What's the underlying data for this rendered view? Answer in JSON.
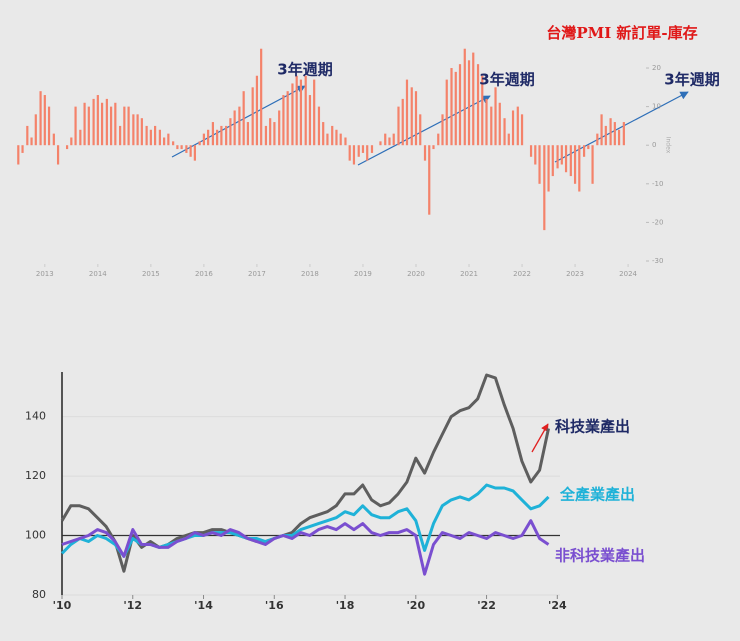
{
  "chart_data": [
    {
      "type": "bar",
      "title": "台灣PMI 新訂單-庫存",
      "y_label": "Index",
      "annotations": [
        "3年週期",
        "3年週期",
        "3年週期"
      ],
      "color": "#f4826a",
      "x": [
        2012.5,
        2012.58,
        2012.67,
        2012.75,
        2012.83,
        2012.92,
        2013.0,
        2013.08,
        2013.17,
        2013.25,
        2013.33,
        2013.42,
        2013.5,
        2013.58,
        2013.67,
        2013.75,
        2013.83,
        2013.92,
        2014.0,
        2014.08,
        2014.17,
        2014.25,
        2014.33,
        2014.42,
        2014.5,
        2014.58,
        2014.67,
        2014.75,
        2014.83,
        2014.92,
        2015.0,
        2015.08,
        2015.17,
        2015.25,
        2015.33,
        2015.42,
        2015.5,
        2015.58,
        2015.67,
        2015.75,
        2015.83,
        2015.92,
        2016.0,
        2016.08,
        2016.17,
        2016.25,
        2016.33,
        2016.42,
        2016.5,
        2016.58,
        2016.67,
        2016.75,
        2016.83,
        2016.92,
        2017.0,
        2017.08,
        2017.17,
        2017.25,
        2017.33,
        2017.42,
        2017.5,
        2017.58,
        2017.67,
        2017.75,
        2017.83,
        2017.92,
        2018.0,
        2018.08,
        2018.17,
        2018.25,
        2018.33,
        2018.42,
        2018.5,
        2018.58,
        2018.67,
        2018.75,
        2018.83,
        2018.92,
        2019.0,
        2019.08,
        2019.17,
        2019.25,
        2019.33,
        2019.42,
        2019.5,
        2019.58,
        2019.67,
        2019.75,
        2019.83,
        2019.92,
        2020.0,
        2020.08,
        2020.17,
        2020.25,
        2020.33,
        2020.42,
        2020.5,
        2020.58,
        2020.67,
        2020.75,
        2020.83,
        2020.92,
        2021.0,
        2021.08,
        2021.17,
        2021.25,
        2021.33,
        2021.42,
        2021.5,
        2021.58,
        2021.67,
        2021.75,
        2021.83,
        2021.92,
        2022.0,
        2022.08,
        2022.17,
        2022.25,
        2022.33,
        2022.42,
        2022.5,
        2022.58,
        2022.67,
        2022.75,
        2022.83,
        2022.92,
        2023.0,
        2023.08,
        2023.17,
        2023.25,
        2023.33,
        2023.42,
        2023.5,
        2023.58,
        2023.67,
        2023.75,
        2023.83,
        2023.92
      ],
      "values": [
        -5,
        -2,
        5,
        2,
        8,
        14,
        13,
        10,
        3,
        -5,
        0,
        -1,
        2,
        10,
        4,
        11,
        10,
        12,
        13,
        11,
        12,
        10,
        11,
        5,
        10,
        10,
        8,
        8,
        7,
        5,
        4,
        5,
        4,
        2,
        3,
        1,
        -1,
        -1,
        -2,
        -3,
        -4,
        1,
        3,
        4,
        6,
        4,
        5,
        5,
        7,
        9,
        10,
        14,
        6,
        15,
        18,
        25,
        5,
        7,
        6,
        9,
        13,
        14,
        16,
        18,
        17,
        18,
        13,
        17,
        10,
        6,
        3,
        5,
        4,
        3,
        2,
        -4,
        -5,
        -3,
        -2,
        -4,
        -2,
        0,
        1,
        3,
        2,
        3,
        10,
        12,
        17,
        15,
        14,
        8,
        -4,
        -18,
        -1,
        3,
        8,
        17,
        20,
        19,
        21,
        25,
        22,
        24,
        21,
        18,
        12,
        10,
        15,
        11,
        7,
        3,
        9,
        10,
        8,
        0,
        -3,
        -5,
        -10,
        -22,
        -12,
        -8,
        -6,
        -5,
        -7,
        -8,
        -10,
        -12,
        -3,
        -1,
        -10,
        3,
        8,
        5,
        7,
        6,
        4,
        6
      ],
      "xlim": [
        2012.4,
        2024.3
      ],
      "xticks": [
        2013,
        2014,
        2015,
        2016,
        2017,
        2018,
        2019,
        2020,
        2021,
        2022,
        2023,
        2024
      ],
      "ylim": [
        -30,
        27
      ],
      "yticks": [
        20,
        10,
        0,
        -10,
        -20,
        -30
      ]
    },
    {
      "type": "line",
      "grid": true,
      "hline": 100,
      "x": [
        2010,
        2010.25,
        2010.5,
        2010.75,
        2011,
        2011.25,
        2011.5,
        2011.75,
        2012,
        2012.25,
        2012.5,
        2012.75,
        2013,
        2013.25,
        2013.5,
        2013.75,
        2014,
        2014.25,
        2014.5,
        2014.75,
        2015,
        2015.25,
        2015.5,
        2015.75,
        2016,
        2016.25,
        2016.5,
        2016.75,
        2017,
        2017.25,
        2017.5,
        2017.75,
        2018,
        2018.25,
        2018.5,
        2018.75,
        2019,
        2019.25,
        2019.5,
        2019.75,
        2020,
        2020.25,
        2020.5,
        2020.75,
        2021,
        2021.25,
        2021.5,
        2021.75,
        2022,
        2022.25,
        2022.5,
        2022.75,
        2023,
        2023.25,
        2023.5,
        2023.75
      ],
      "series": [
        {
          "name": "科技業產出",
          "color": "#5e5e5e",
          "label_color": "#1f2a66",
          "values": [
            105,
            110,
            110,
            109,
            106,
            103,
            98,
            88,
            100,
            96,
            98,
            96,
            97,
            99,
            100,
            101,
            101,
            102,
            102,
            101,
            100,
            99,
            98,
            98,
            99,
            100,
            101,
            104,
            106,
            107,
            108,
            110,
            114,
            114,
            117,
            112,
            110,
            111,
            114,
            118,
            126,
            121,
            128,
            134,
            140,
            142,
            143,
            146,
            154,
            153,
            144,
            136,
            125,
            118,
            122,
            136
          ]
        },
        {
          "name": "全產業產出",
          "color": "#1fb2d8",
          "label_color": "#1fb2d8",
          "values": [
            94,
            97,
            99,
            98,
            100,
            99,
            97,
            93,
            99,
            97,
            97,
            96,
            97,
            98,
            99,
            100,
            100,
            101,
            101,
            101,
            100,
            99,
            99,
            98,
            99,
            100,
            100,
            102,
            103,
            104,
            105,
            106,
            108,
            107,
            110,
            107,
            106,
            106,
            108,
            109,
            105,
            95,
            104,
            110,
            112,
            113,
            112,
            114,
            117,
            116,
            116,
            115,
            112,
            109,
            110,
            113
          ]
        },
        {
          "name": "非科技業產出",
          "color": "#7a4fd0",
          "label_color": "#7a4fd0",
          "values": [
            97,
            98,
            99,
            100,
            102,
            101,
            98,
            93,
            102,
            97,
            97,
            96,
            96,
            98,
            99,
            101,
            100,
            101,
            100,
            102,
            101,
            99,
            98,
            97,
            99,
            100,
            99,
            101,
            100,
            102,
            103,
            102,
            104,
            102,
            104,
            101,
            100,
            101,
            101,
            102,
            100,
            87,
            97,
            101,
            100,
            99,
            101,
            100,
            99,
            101,
            100,
            99,
            100,
            105,
            99,
            97
          ]
        }
      ],
      "xlim": [
        2010,
        2024.5
      ],
      "xticks": [
        {
          "value": 2010,
          "label": "'10"
        },
        {
          "value": 2012,
          "label": "'12"
        },
        {
          "value": 2014,
          "label": "'14"
        },
        {
          "value": 2016,
          "label": "'16"
        },
        {
          "value": 2018,
          "label": "'18"
        },
        {
          "value": 2020,
          "label": "'20"
        },
        {
          "value": 2022,
          "label": "'22"
        },
        {
          "value": 2024,
          "label": "'24"
        }
      ],
      "ylim": [
        80,
        155
      ],
      "yticks": [
        80,
        100,
        120,
        140
      ]
    }
  ]
}
